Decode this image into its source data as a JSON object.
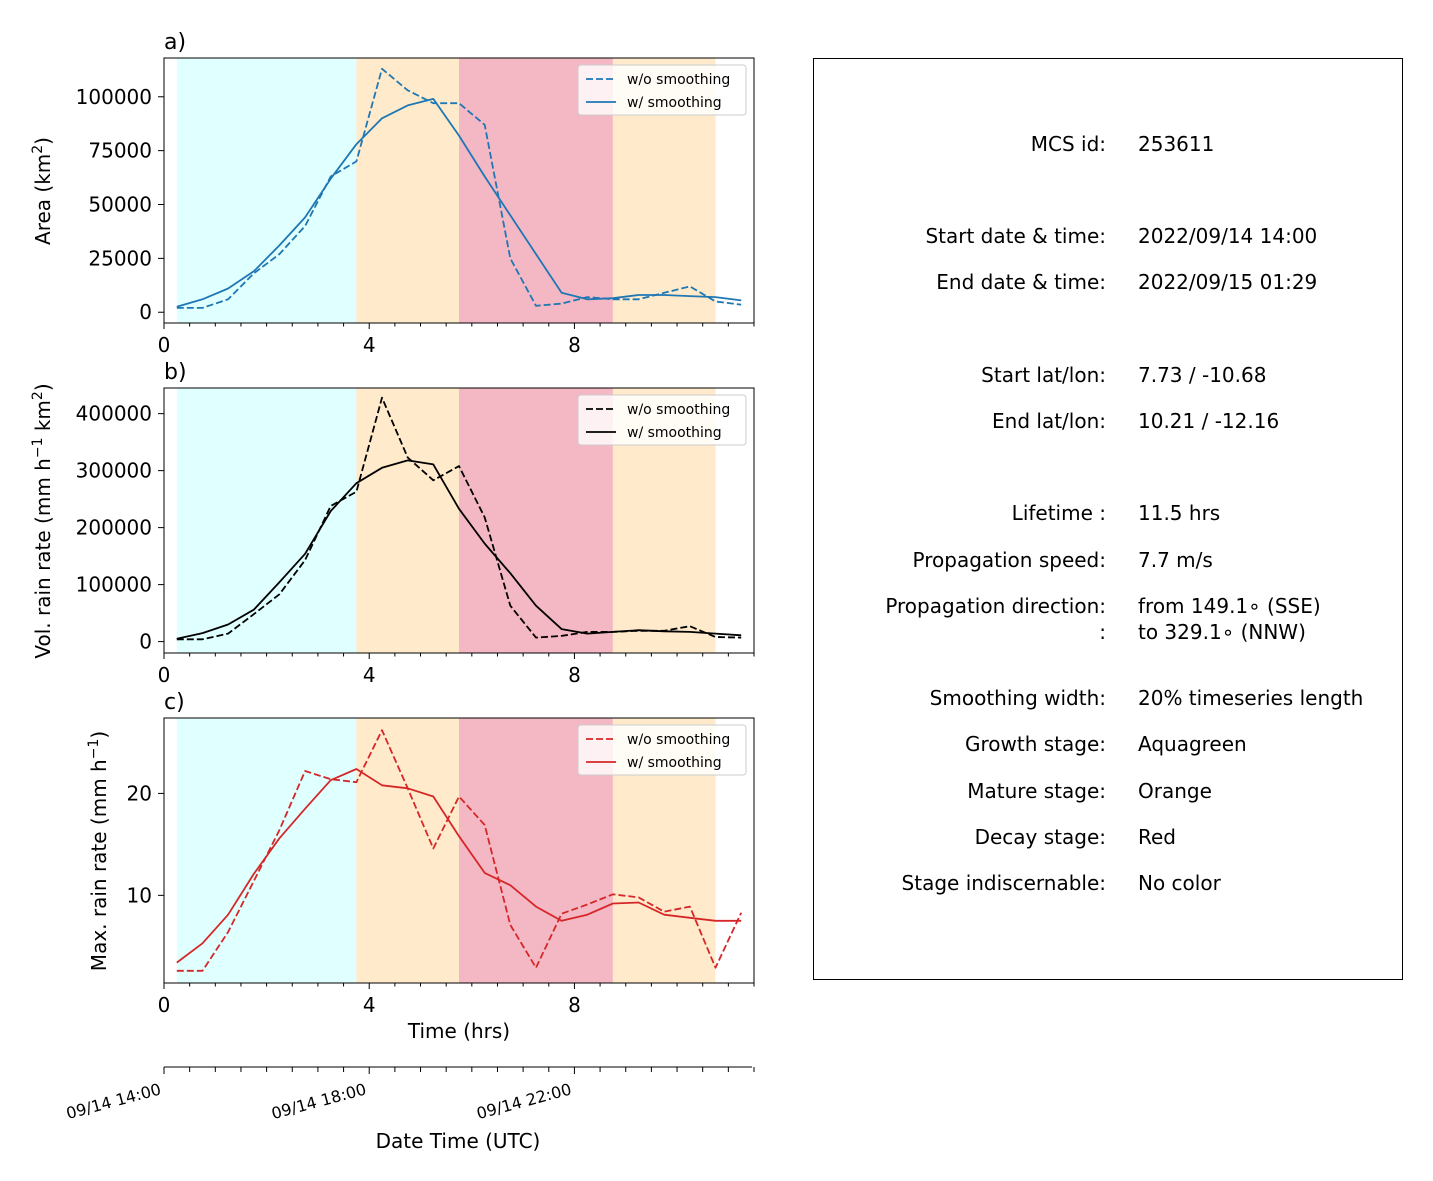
{
  "chart_data": [
    {
      "type": "line",
      "panel_label": "a)",
      "ylabel": "Area  (km$^2$)",
      "ylabel_main": "Area  (km",
      "ylabel_sup": "2",
      "ylabel_end": ")",
      "yticks": [
        0,
        25000,
        50000,
        75000,
        100000
      ],
      "ytick_labels": [
        "0",
        "25000",
        "50000",
        "75000",
        "100000"
      ],
      "ylim": [
        -5000,
        118000
      ],
      "xlim": [
        0,
        11.5
      ],
      "xticks": [
        0,
        4,
        8
      ],
      "xtick_labels": [
        "0",
        "4",
        "8"
      ],
      "color": "#1f77b4",
      "legend": [
        "w/o smoothing",
        "w/ smoothing"
      ],
      "legend_position": "top-right",
      "series": [
        {
          "name": "w/o smoothing",
          "style": "dashed",
          "x": [
            0.25,
            0.75,
            1.25,
            1.75,
            2.25,
            2.75,
            3.25,
            3.75,
            4.25,
            4.75,
            5.25,
            5.75,
            6.25,
            6.75,
            7.25,
            7.75,
            8.25,
            8.75,
            9.25,
            9.75,
            10.25,
            10.75,
            11.25
          ],
          "y": [
            2000,
            2000,
            6000,
            18000,
            27000,
            40000,
            63000,
            70000,
            113000,
            103000,
            97000,
            97000,
            87000,
            25000,
            3000,
            4000,
            7000,
            6000,
            6000,
            9000,
            12000,
            5000,
            3500
          ]
        },
        {
          "name": "w/ smoothing",
          "style": "solid",
          "x": [
            0.25,
            0.75,
            1.25,
            1.75,
            2.25,
            2.75,
            3.25,
            3.75,
            4.25,
            4.75,
            5.25,
            5.75,
            6.25,
            6.75,
            7.25,
            7.75,
            8.25,
            8.75,
            9.25,
            9.75,
            10.25,
            10.75,
            11.25
          ],
          "y": [
            2500,
            6000,
            11000,
            19000,
            31000,
            44000,
            62000,
            78000,
            90000,
            96000,
            99000,
            82000,
            63000,
            45000,
            27000,
            9000,
            6000,
            6500,
            8000,
            8000,
            7500,
            7000,
            5500
          ]
        }
      ]
    },
    {
      "type": "line",
      "panel_label": "b)",
      "ylabel": "Vol. rain rate (mm h$^{-1}$ km$^2$)",
      "ylabel_p1": "Vol. rain rate (mm h",
      "ylabel_sup1": "−1",
      "ylabel_p2": " km",
      "ylabel_sup2": "2",
      "ylabel_p3": ")",
      "yticks": [
        0,
        100000,
        200000,
        300000,
        400000
      ],
      "ytick_labels": [
        "0",
        "100000",
        "200000",
        "300000",
        "400000"
      ],
      "ylim": [
        -20000,
        445000
      ],
      "xlim": [
        0,
        11.5
      ],
      "xticks": [
        0,
        4,
        8
      ],
      "xtick_labels": [
        "0",
        "4",
        "8"
      ],
      "color": "#000000",
      "legend": [
        "w/o smoothing",
        "w/ smoothing"
      ],
      "legend_position": "top-right",
      "series": [
        {
          "name": "w/o smoothing",
          "style": "dashed",
          "x": [
            0.25,
            0.75,
            1.25,
            1.75,
            2.25,
            2.75,
            3.25,
            3.75,
            4.25,
            4.75,
            5.25,
            5.75,
            6.25,
            6.75,
            7.25,
            7.75,
            8.25,
            8.75,
            9.25,
            9.75,
            10.25,
            10.75,
            11.25
          ],
          "y": [
            4000,
            4000,
            14000,
            48000,
            83000,
            143000,
            238000,
            263000,
            428000,
            323000,
            283000,
            308000,
            218000,
            63000,
            7000,
            10000,
            17000,
            17000,
            19000,
            19000,
            27000,
            8000,
            7000
          ]
        },
        {
          "name": "w/ smoothing",
          "style": "solid",
          "x": [
            0.25,
            0.75,
            1.25,
            1.75,
            2.25,
            2.75,
            3.25,
            3.75,
            4.25,
            4.75,
            5.25,
            5.75,
            6.25,
            6.75,
            7.25,
            7.75,
            8.25,
            8.75,
            9.25,
            9.75,
            10.25,
            10.75,
            11.25
          ],
          "y": [
            5000,
            15000,
            30000,
            56000,
            104000,
            154000,
            229000,
            278000,
            305000,
            318000,
            311000,
            233000,
            172000,
            120000,
            63000,
            22000,
            14000,
            17000,
            20000,
            18000,
            17000,
            14000,
            11000
          ]
        }
      ]
    },
    {
      "type": "line",
      "panel_label": "c)",
      "ylabel": "Max. rain rate  (mm h$^{-1}$)",
      "ylabel_main": "Max. rain rate  (mm h",
      "ylabel_sup": "−1",
      "ylabel_end": ")",
      "yticks": [
        10,
        20
      ],
      "ytick_labels": [
        "10",
        "20"
      ],
      "ylim": [
        1.4,
        27.4
      ],
      "xlim": [
        0,
        11.5
      ],
      "xticks": [
        0,
        4,
        8
      ],
      "xtick_labels": [
        "0",
        "4",
        "8"
      ],
      "xlabel": "Time (hrs)",
      "color": "#d62728",
      "legend": [
        "w/o smoothing",
        "w/ smoothing"
      ],
      "legend_position": "top-right",
      "series": [
        {
          "name": "w/o smoothing",
          "style": "dashed",
          "x": [
            0.25,
            0.75,
            1.25,
            1.75,
            2.25,
            2.75,
            3.25,
            3.75,
            4.25,
            4.75,
            5.25,
            5.75,
            6.25,
            6.75,
            7.25,
            7.75,
            8.25,
            8.75,
            9.25,
            9.75,
            10.25,
            10.75,
            11.25
          ],
          "y": [
            2.6,
            2.6,
            6.4,
            11.4,
            16.4,
            22.2,
            21.4,
            21.1,
            26.2,
            20.5,
            14.6,
            19.7,
            16.9,
            7.1,
            2.9,
            8.2,
            9.1,
            10.1,
            9.8,
            8.4,
            8.9,
            2.9,
            8.3
          ]
        },
        {
          "name": "w/ smoothing",
          "style": "solid",
          "x": [
            0.25,
            0.75,
            1.25,
            1.75,
            2.25,
            2.75,
            3.25,
            3.75,
            4.25,
            4.75,
            5.25,
            5.75,
            6.25,
            6.75,
            7.25,
            7.75,
            8.25,
            8.75,
            9.25,
            9.75,
            10.25,
            10.75,
            11.25
          ],
          "y": [
            3.4,
            5.3,
            8.1,
            12.1,
            15.6,
            18.5,
            21.3,
            22.4,
            20.8,
            20.5,
            19.7,
            15.8,
            12.2,
            11.0,
            8.9,
            7.5,
            8.1,
            9.2,
            9.3,
            8.1,
            7.8,
            7.5,
            7.5
          ]
        }
      ]
    }
  ],
  "stages": [
    {
      "name": "growth",
      "from": 0.25,
      "to": 3.75,
      "color": "#e0ffff"
    },
    {
      "name": "mature",
      "from": 3.75,
      "to": 5.75,
      "color": "#ffebcc"
    },
    {
      "name": "decay",
      "from": 5.75,
      "to": 8.75,
      "color": "#f4b8c4"
    },
    {
      "name": "mature2",
      "from": 8.75,
      "to": 10.75,
      "color": "#ffebcc"
    }
  ],
  "date_axis": {
    "xlabel": "Date Time (UTC)",
    "tick_labels": [
      "09/14 14:00",
      "09/14 18:00",
      "09/14 22:00"
    ],
    "major_ticks": [
      0,
      4,
      8
    ],
    "minor_step": 0.5
  },
  "info": {
    "rows": [
      {
        "label": "MCS id:",
        "value": "253611"
      },
      {
        "label": "Start date & time:",
        "value": "2022/09/14 14:00"
      },
      {
        "label": "End date & time:",
        "value": "2022/09/15 01:29"
      },
      {
        "label": "Start lat/lon:",
        "value": "7.73 / -10.68"
      },
      {
        "label": "End lat/lon:",
        "value": "10.21 / -12.16"
      },
      {
        "label": "Lifetime :",
        "value": "11.5 hrs"
      },
      {
        "label": "Propagation speed:",
        "value": "7.7 m/s"
      },
      {
        "label": "Propagation direction:",
        "value": "from 149.1∘ (SSE)"
      },
      {
        "label": ":",
        "value": "to   329.1∘ (NNW)"
      },
      {
        "label": "Smoothing width:",
        "value": "20% timeseries length"
      },
      {
        "label": "Growth stage:",
        "value": "Aquagreen"
      },
      {
        "label": "Mature stage:",
        "value": "Orange"
      },
      {
        "label": "Decay stage:",
        "value": "Red"
      },
      {
        "label": "Stage indiscernable:",
        "value": "No color"
      }
    ]
  }
}
